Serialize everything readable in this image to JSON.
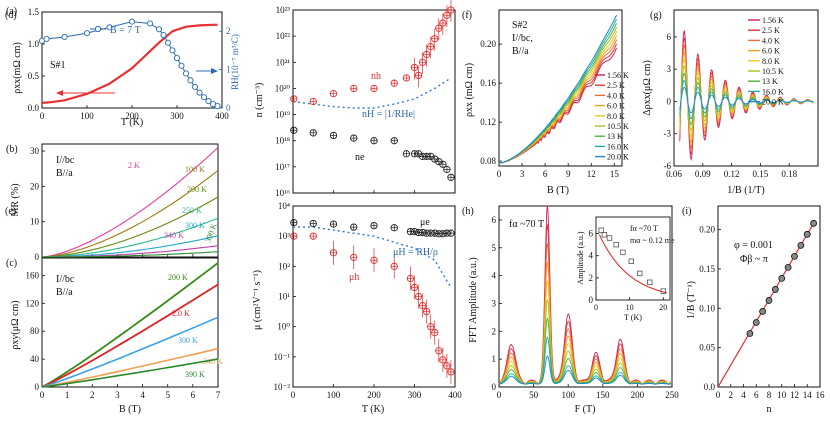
{
  "figure": {
    "panels": {
      "a": {
        "label": "(a)",
        "sample": "S#1",
        "legend": "B = 7 T",
        "ylabel_left": "ρxx(mΩ cm)",
        "ylabel_right": "RH(10⁻⁷ m³/C)",
        "xlabel": "T (K)"
      },
      "b": {
        "label": "(b)",
        "note1": "I//bc",
        "note2": "B//a",
        "ylabel": "MR (%)"
      },
      "c": {
        "label": "(c)",
        "note1": "I//bc",
        "note2": "B//a",
        "ylabel": "ρxy(μΩ cm)",
        "xlabel": "B (T)"
      },
      "d": {
        "label": "(d)",
        "ylabel": "n (cm⁻³)",
        "label_nh": "nh",
        "label_ne": "ne",
        "label_nH": "nH = |1/RHe|"
      },
      "e": {
        "label": "(e)",
        "ylabel": "μ (cm²V⁻¹ s⁻¹)",
        "xlabel": "T (K)",
        "label_muh": "μh",
        "label_mue": "μe",
        "label_muH": "μH = RH/ρ"
      },
      "f": {
        "label": "(f)",
        "note1": "S#2",
        "note2": "I//bc,",
        "note3": "B//a",
        "ylabel": "ρxx (mΩ cm)",
        "xlabel": "B (T)"
      },
      "g": {
        "label": "(g)",
        "ylabel": "Δρxx(μΩ cm)",
        "xlabel": "1/B (1/T)"
      },
      "h": {
        "label": "(h)",
        "note": "fα ~70 T",
        "ylabel": "FFT Amplitude (a.u.)",
        "xlabel": "F (T)",
        "inset": {
          "note1": "fα ~70 T",
          "note2": "mα ~ 0.12 me",
          "ylabel": "Amplitude (a.u.)",
          "xlabel": "T (K)"
        }
      },
      "i": {
        "label": "(i)",
        "note1": "φ = 0.001",
        "note2": "Φβ ~ π",
        "ylabel": "1/B (T⁻¹)",
        "xlabel": "n"
      }
    }
  },
  "chart_data": [
    {
      "panel": "a",
      "type": "line",
      "x": [
        0,
        20,
        50,
        100,
        150,
        200,
        230,
        260,
        290,
        320,
        350,
        380,
        390
      ],
      "series": [
        {
          "name": "ρxx",
          "axis": "left",
          "y": [
            0.08,
            0.09,
            0.12,
            0.22,
            0.38,
            0.62,
            0.82,
            1.02,
            1.2,
            1.27,
            1.29,
            1.3,
            1.3
          ]
        },
        {
          "name": "RH",
          "axis": "right",
          "marker": "o",
          "x": [
            0,
            10,
            50,
            100,
            150,
            200,
            240,
            260,
            270,
            280,
            290,
            300,
            310,
            320,
            330,
            340,
            350,
            360,
            370,
            380,
            390
          ],
          "y": [
            1.75,
            1.8,
            1.85,
            1.95,
            2.1,
            2.25,
            2.2,
            2.05,
            1.9,
            1.7,
            1.5,
            1.3,
            1.1,
            0.9,
            0.72,
            0.55,
            0.4,
            0.28,
            0.18,
            0.1,
            0.05
          ]
        }
      ],
      "xlim": [
        0,
        400
      ],
      "ylim_left": [
        0,
        1.5
      ],
      "ylim_right": [
        0,
        2.5
      ],
      "xticks": [
        "0",
        "100",
        "200",
        "300",
        "400"
      ],
      "yticks_left": [
        "0.0",
        "0.5",
        "1.0",
        "1.5"
      ],
      "yticks_right": [
        "0",
        "1",
        "2"
      ]
    },
    {
      "panel": "b",
      "type": "line",
      "xlim": [
        0,
        7
      ],
      "ylim": [
        0,
        32
      ],
      "yticks": [
        "0",
        "10",
        "20",
        "30"
      ],
      "series": [
        {
          "name": "2 K",
          "color": "#e8389e",
          "max": 31
        },
        {
          "name": "100 K",
          "color": "#9a7a10",
          "max": 24.5
        },
        {
          "name": "200 K",
          "color": "#6a8a10",
          "max": 17
        },
        {
          "name": "250 K",
          "color": "#28b890",
          "max": 11
        },
        {
          "name": "300 K",
          "color": "#20a8d0",
          "max": 6
        },
        {
          "name": "340 K",
          "color": "#c040b0",
          "max": 3.2
        },
        {
          "name": "390 K",
          "color": "#2a8a2a",
          "max": 1.5
        }
      ]
    },
    {
      "panel": "c",
      "type": "line",
      "xlim": [
        0,
        7
      ],
      "ylim": [
        0,
        185
      ],
      "xticks": [
        "0",
        "1",
        "2",
        "3",
        "4",
        "5",
        "6",
        "7"
      ],
      "yticks": [
        "0",
        "40",
        "80",
        "120",
        "160"
      ],
      "series": [
        {
          "name": "200 K",
          "color": "#3a8a1a",
          "max": 178
        },
        {
          "name": "2.0 K",
          "color": "#e02020",
          "max": 147
        },
        {
          "name": "300 K",
          "color": "#3aa0e8",
          "max": 100
        },
        {
          "name": "340 K",
          "color": "#f0a050",
          "max": 55
        },
        {
          "name": "390 K",
          "color": "#2a8a2a",
          "max": 40
        }
      ]
    },
    {
      "panel": "d",
      "type": "scatter",
      "log": true,
      "xlim": [
        0,
        400
      ],
      "ylim_exp": [
        16,
        23
      ],
      "yticks": [
        "10¹⁶",
        "10¹⁷",
        "10¹⁸",
        "10¹⁹",
        "10²⁰",
        "10²¹",
        "10²²",
        "10²³"
      ],
      "series": [
        {
          "name": "nh",
          "color": "#e03030",
          "x": [
            2,
            50,
            100,
            150,
            200,
            250,
            280,
            300,
            310,
            320,
            330,
            340,
            350,
            360,
            370,
            380,
            390
          ],
          "logy": [
            19.6,
            19.5,
            19.8,
            20.0,
            20.0,
            20.2,
            20.4,
            20.8,
            20.5,
            21.0,
            21.3,
            21.6,
            21.9,
            22.3,
            22.5,
            22.8,
            23.0
          ]
        },
        {
          "name": "ne",
          "color": "#222222",
          "x": [
            2,
            50,
            100,
            150,
            200,
            250,
            280,
            300,
            310,
            320,
            330,
            340,
            350,
            360,
            370,
            380,
            390
          ],
          "logy": [
            18.4,
            18.3,
            18.2,
            18.1,
            18.0,
            18.0,
            17.5,
            17.5,
            17.5,
            17.4,
            17.4,
            17.4,
            17.3,
            17.2,
            17.1,
            16.9,
            16.6
          ]
        },
        {
          "name": "nH",
          "dashed": true,
          "color": "#2a7ad0",
          "x": [
            0,
            50,
            100,
            150,
            200,
            250,
            300,
            350,
            390
          ],
          "logy": [
            19.5,
            19.4,
            19.3,
            19.25,
            19.25,
            19.4,
            19.6,
            20.0,
            20.4
          ]
        }
      ]
    },
    {
      "panel": "e",
      "type": "scatter",
      "log": true,
      "xlim": [
        0,
        400
      ],
      "ylim_exp": [
        -2,
        4
      ],
      "xticks": [
        "0",
        "100",
        "200",
        "300",
        "400"
      ],
      "yticks": [
        "10⁻²",
        "10⁻¹",
        "10⁰",
        "10¹",
        "10²",
        "10³",
        "10⁴"
      ],
      "series": [
        {
          "name": "μe",
          "color": "#222222",
          "x": [
            2,
            50,
            100,
            150,
            200,
            250,
            290,
            300,
            310,
            320,
            330,
            340,
            350,
            360,
            370,
            380,
            390
          ],
          "logy": [
            3.45,
            3.42,
            3.4,
            3.3,
            3.35,
            3.28,
            3.15,
            3.15,
            3.12,
            3.12,
            3.1,
            3.1,
            3.1,
            3.08,
            3.08,
            3.1,
            3.1
          ]
        },
        {
          "name": "μh",
          "color": "#e03030",
          "x": [
            2,
            50,
            100,
            150,
            200,
            250,
            290,
            300,
            310,
            320,
            330,
            340,
            350,
            360,
            370,
            380,
            390
          ],
          "logy": [
            3.0,
            3.0,
            2.45,
            2.3,
            2.2,
            2.0,
            1.6,
            1.3,
            1.0,
            0.7,
            0.5,
            0.0,
            -0.2,
            -0.8,
            -1.1,
            -1.3,
            -1.5
          ]
        },
        {
          "name": "μH",
          "dashed": true,
          "color": "#2a7ad0",
          "x": [
            0,
            50,
            100,
            150,
            200,
            250,
            300,
            350,
            390
          ],
          "logy": [
            3.3,
            3.3,
            3.2,
            3.1,
            3.0,
            2.8,
            2.6,
            2.2,
            1.3
          ]
        }
      ]
    },
    {
      "panel": "f",
      "type": "line",
      "xlim": [
        0,
        16
      ],
      "ylim": [
        0.075,
        0.235
      ],
      "xticks": [
        "0",
        "3",
        "6",
        "9",
        "12",
        "15"
      ],
      "yticks": [
        "0.08",
        "0.12",
        "0.16",
        "0.20"
      ],
      "series": [
        {
          "name": "1.56 K",
          "color": "#d02050",
          "max": 0.198
        },
        {
          "name": "2.5 K",
          "color": "#e03838",
          "max": 0.202
        },
        {
          "name": "4.0 K",
          "color": "#f06a38",
          "max": 0.206
        },
        {
          "name": "6.0 K",
          "color": "#f0a020",
          "max": 0.21
        },
        {
          "name": "8.0 K",
          "color": "#e8c820",
          "max": 0.214
        },
        {
          "name": "10.5 K",
          "color": "#a8c020",
          "max": 0.218
        },
        {
          "name": "13 K",
          "color": "#50b040",
          "max": 0.222
        },
        {
          "name": "16.0 K",
          "color": "#20b0a8",
          "max": 0.226
        },
        {
          "name": "20.0 K",
          "color": "#2088c8",
          "max": 0.23
        }
      ]
    },
    {
      "panel": "g",
      "type": "line",
      "xlim": [
        0.06,
        0.21
      ],
      "ylim": [
        -6,
        8.5
      ],
      "xticks": [
        "0.06",
        "0.09",
        "0.12",
        "0.15",
        "0.18"
      ],
      "yticks": [
        "-6",
        "-3",
        "0",
        "3",
        "6"
      ]
    },
    {
      "panel": "h",
      "type": "line",
      "xlim": [
        0,
        250
      ],
      "ylim": [
        0,
        6.5
      ],
      "xticks": [
        "0",
        "50",
        "100",
        "150",
        "200",
        "250"
      ],
      "yticks": [
        "0",
        "1",
        "2",
        "3",
        "4",
        "5",
        "6"
      ],
      "peaks": [
        18,
        70,
        100,
        140,
        175
      ],
      "peak_heights_max": [
        1.4,
        6.3,
        2.4,
        1.0,
        1.5
      ]
    },
    {
      "panel": "h-inset",
      "type": "scatter",
      "xlim": [
        0,
        22
      ],
      "ylim": [
        0,
        7.5
      ],
      "xticks": [
        "0",
        "10",
        "20"
      ],
      "yticks": [
        "0",
        "2",
        "4",
        "6"
      ],
      "x": [
        1.56,
        2.5,
        4,
        6,
        8,
        10.5,
        13,
        16,
        20
      ],
      "y": [
        6.3,
        5.9,
        5.6,
        5.0,
        4.3,
        3.5,
        2.4,
        1.6,
        0.8
      ]
    },
    {
      "panel": "i",
      "type": "scatter",
      "xlim": [
        0,
        16
      ],
      "ylim": [
        0,
        0.23
      ],
      "xticks": [
        "0",
        "2",
        "4",
        "6",
        "8",
        "10",
        "12",
        "14",
        "16"
      ],
      "yticks": [
        "0.0",
        "0.05",
        "0.10",
        "0.15",
        "0.20"
      ],
      "x": [
        5,
        6,
        7,
        8,
        9,
        10,
        11,
        12,
        13,
        14,
        15
      ],
      "y": [
        0.068,
        0.082,
        0.096,
        0.11,
        0.124,
        0.138,
        0.152,
        0.166,
        0.18,
        0.194,
        0.208
      ]
    }
  ]
}
